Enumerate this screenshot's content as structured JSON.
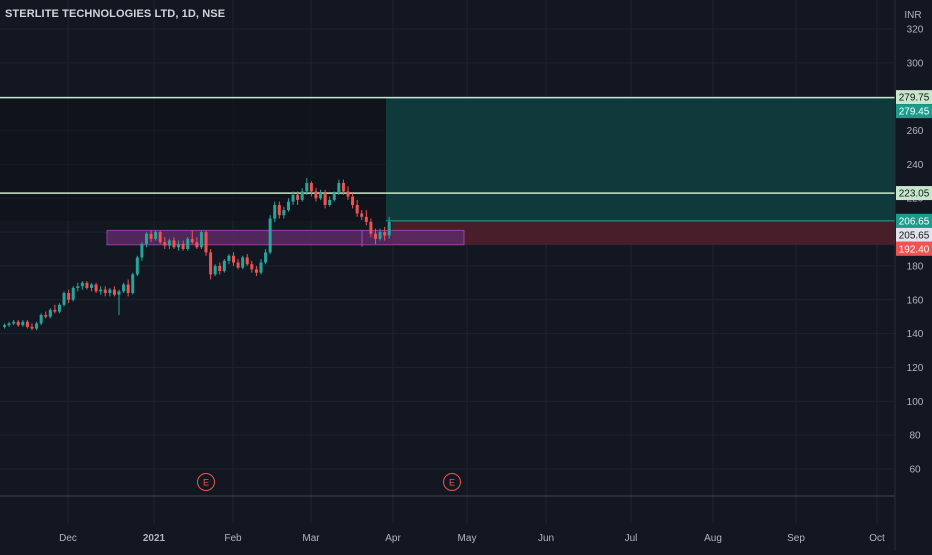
{
  "header": {
    "symbol_title": "STERLITE TECHNOLOGIES LTD, 1D, NSE",
    "currency": "INR"
  },
  "colors": {
    "background": "#131722",
    "grid": "#1f2330",
    "axis_text": "#b2b5be",
    "up_candle": "#26a69a",
    "down_candle": "#ef5350",
    "level_line": "#c8e6c9",
    "target_zone": "#0f3b3c",
    "stop_zone": "#4b1f2c",
    "demand_zone_fill": "#5b2a66",
    "demand_zone_border": "#ab47bc",
    "badge_green": "#1a9c8a",
    "badge_light": "#c8e6c9",
    "badge_red": "#ef5350",
    "badge_white": "#e0e3eb",
    "earnings_marker": "#ef5350"
  },
  "chart_data": {
    "type": "candlestick",
    "title": "STERLITE TECHNOLOGIES LTD, 1D, NSE",
    "currency_label": "INR",
    "ylim": [
      42,
      325
    ],
    "y_ticks": [
      60,
      80,
      100,
      120,
      140,
      160,
      180,
      200,
      220,
      240,
      260,
      280,
      300,
      320
    ],
    "x_ticks": [
      "Dec",
      "2021",
      "Feb",
      "Mar",
      "Apr",
      "May",
      "Jun",
      "Jul",
      "Aug",
      "Sep",
      "Oct"
    ],
    "price_levels": [
      {
        "label": "279.75",
        "value": 279.75,
        "style": "light"
      },
      {
        "label": "279.45",
        "value": 279.45,
        "style": "green"
      },
      {
        "label": "223.05",
        "value": 223.05,
        "style": "light"
      },
      {
        "label": "206.65",
        "value": 206.65,
        "style": "green"
      },
      {
        "label": "205.65",
        "value": 205.65,
        "style": "white"
      },
      {
        "label": "192.40",
        "value": 192.4,
        "style": "red"
      }
    ],
    "horizontal_lines": [
      279.45,
      223.05
    ],
    "target_zone": {
      "top": 279.45,
      "bottom": 206.65
    },
    "stop_zone": {
      "top": 206.65,
      "bottom": 192.4
    },
    "demand_zone": {
      "top": 201,
      "bottom": 192.5
    },
    "earnings_markers": [
      "E",
      "E"
    ],
    "candles": [
      {
        "o": 144,
        "h": 146,
        "l": 143,
        "c": 145
      },
      {
        "o": 145,
        "h": 147,
        "l": 144,
        "c": 146
      },
      {
        "o": 146,
        "h": 148,
        "l": 145,
        "c": 147
      },
      {
        "o": 147,
        "h": 148,
        "l": 144,
        "c": 145
      },
      {
        "o": 145,
        "h": 148,
        "l": 144,
        "c": 147
      },
      {
        "o": 147,
        "h": 148,
        "l": 143,
        "c": 144
      },
      {
        "o": 144,
        "h": 146,
        "l": 142,
        "c": 143
      },
      {
        "o": 143,
        "h": 147,
        "l": 142,
        "c": 146
      },
      {
        "o": 146,
        "h": 152,
        "l": 145,
        "c": 151
      },
      {
        "o": 151,
        "h": 153,
        "l": 149,
        "c": 150
      },
      {
        "o": 150,
        "h": 155,
        "l": 149,
        "c": 154
      },
      {
        "o": 154,
        "h": 157,
        "l": 152,
        "c": 153
      },
      {
        "o": 153,
        "h": 158,
        "l": 152,
        "c": 157
      },
      {
        "o": 157,
        "h": 165,
        "l": 156,
        "c": 164
      },
      {
        "o": 164,
        "h": 166,
        "l": 158,
        "c": 160
      },
      {
        "o": 160,
        "h": 168,
        "l": 159,
        "c": 167
      },
      {
        "o": 167,
        "h": 170,
        "l": 165,
        "c": 168
      },
      {
        "o": 168,
        "h": 171,
        "l": 166,
        "c": 170
      },
      {
        "o": 170,
        "h": 171,
        "l": 166,
        "c": 167
      },
      {
        "o": 167,
        "h": 170,
        "l": 165,
        "c": 169
      },
      {
        "o": 169,
        "h": 170,
        "l": 164,
        "c": 165
      },
      {
        "o": 165,
        "h": 168,
        "l": 163,
        "c": 166
      },
      {
        "o": 166,
        "h": 168,
        "l": 162,
        "c": 164
      },
      {
        "o": 164,
        "h": 167,
        "l": 162,
        "c": 166
      },
      {
        "o": 166,
        "h": 168,
        "l": 162,
        "c": 163
      },
      {
        "o": 163,
        "h": 166,
        "l": 151,
        "c": 165
      },
      {
        "o": 165,
        "h": 170,
        "l": 164,
        "c": 169
      },
      {
        "o": 169,
        "h": 172,
        "l": 162,
        "c": 164
      },
      {
        "o": 164,
        "h": 176,
        "l": 163,
        "c": 175
      },
      {
        "o": 175,
        "h": 186,
        "l": 174,
        "c": 185
      },
      {
        "o": 185,
        "h": 194,
        "l": 183,
        "c": 193
      },
      {
        "o": 193,
        "h": 200,
        "l": 191,
        "c": 199
      },
      {
        "o": 199,
        "h": 201,
        "l": 194,
        "c": 196
      },
      {
        "o": 196,
        "h": 201,
        "l": 195,
        "c": 200
      },
      {
        "o": 200,
        "h": 201,
        "l": 193,
        "c": 194
      },
      {
        "o": 194,
        "h": 197,
        "l": 190,
        "c": 192
      },
      {
        "o": 192,
        "h": 196,
        "l": 190,
        "c": 195
      },
      {
        "o": 195,
        "h": 197,
        "l": 190,
        "c": 191
      },
      {
        "o": 191,
        "h": 195,
        "l": 189,
        "c": 193
      },
      {
        "o": 193,
        "h": 195,
        "l": 189,
        "c": 190
      },
      {
        "o": 190,
        "h": 197,
        "l": 189,
        "c": 196
      },
      {
        "o": 196,
        "h": 201,
        "l": 193,
        "c": 194
      },
      {
        "o": 194,
        "h": 197,
        "l": 190,
        "c": 191
      },
      {
        "o": 191,
        "h": 201,
        "l": 190,
        "c": 200
      },
      {
        "o": 200,
        "h": 201,
        "l": 186,
        "c": 188
      },
      {
        "o": 188,
        "h": 190,
        "l": 172,
        "c": 175
      },
      {
        "o": 175,
        "h": 181,
        "l": 174,
        "c": 180
      },
      {
        "o": 180,
        "h": 182,
        "l": 175,
        "c": 177
      },
      {
        "o": 177,
        "h": 184,
        "l": 176,
        "c": 183
      },
      {
        "o": 183,
        "h": 187,
        "l": 181,
        "c": 186
      },
      {
        "o": 186,
        "h": 188,
        "l": 180,
        "c": 182
      },
      {
        "o": 182,
        "h": 184,
        "l": 178,
        "c": 179
      },
      {
        "o": 179,
        "h": 186,
        "l": 178,
        "c": 185
      },
      {
        "o": 185,
        "h": 187,
        "l": 180,
        "c": 181
      },
      {
        "o": 181,
        "h": 183,
        "l": 176,
        "c": 178
      },
      {
        "o": 178,
        "h": 180,
        "l": 174,
        "c": 176
      },
      {
        "o": 176,
        "h": 184,
        "l": 175,
        "c": 182
      },
      {
        "o": 182,
        "h": 190,
        "l": 181,
        "c": 188
      },
      {
        "o": 188,
        "h": 210,
        "l": 187,
        "c": 208
      },
      {
        "o": 208,
        "h": 218,
        "l": 206,
        "c": 216
      },
      {
        "o": 216,
        "h": 218,
        "l": 208,
        "c": 210
      },
      {
        "o": 210,
        "h": 215,
        "l": 208,
        "c": 213
      },
      {
        "o": 213,
        "h": 220,
        "l": 212,
        "c": 218
      },
      {
        "o": 218,
        "h": 224,
        "l": 216,
        "c": 222
      },
      {
        "o": 222,
        "h": 224,
        "l": 216,
        "c": 219
      },
      {
        "o": 219,
        "h": 226,
        "l": 218,
        "c": 224
      },
      {
        "o": 224,
        "h": 232,
        "l": 222,
        "c": 229
      },
      {
        "o": 229,
        "h": 230,
        "l": 221,
        "c": 224
      },
      {
        "o": 224,
        "h": 226,
        "l": 218,
        "c": 220
      },
      {
        "o": 220,
        "h": 225,
        "l": 219,
        "c": 223
      },
      {
        "o": 223,
        "h": 225,
        "l": 214,
        "c": 216
      },
      {
        "o": 216,
        "h": 221,
        "l": 215,
        "c": 219
      },
      {
        "o": 219,
        "h": 224,
        "l": 218,
        "c": 223
      },
      {
        "o": 223,
        "h": 231,
        "l": 222,
        "c": 229
      },
      {
        "o": 229,
        "h": 231,
        "l": 222,
        "c": 224
      },
      {
        "o": 224,
        "h": 227,
        "l": 219,
        "c": 221
      },
      {
        "o": 221,
        "h": 223,
        "l": 214,
        "c": 216
      },
      {
        "o": 216,
        "h": 219,
        "l": 209,
        "c": 211
      },
      {
        "o": 211,
        "h": 213,
        "l": 207,
        "c": 209
      },
      {
        "o": 209,
        "h": 213,
        "l": 204,
        "c": 206
      },
      {
        "o": 206,
        "h": 208,
        "l": 197,
        "c": 199
      },
      {
        "o": 199,
        "h": 202,
        "l": 193,
        "c": 196
      },
      {
        "o": 196,
        "h": 202,
        "l": 195,
        "c": 200
      },
      {
        "o": 200,
        "h": 203,
        "l": 195,
        "c": 198
      },
      {
        "o": 198,
        "h": 209,
        "l": 196,
        "c": 206
      }
    ]
  }
}
